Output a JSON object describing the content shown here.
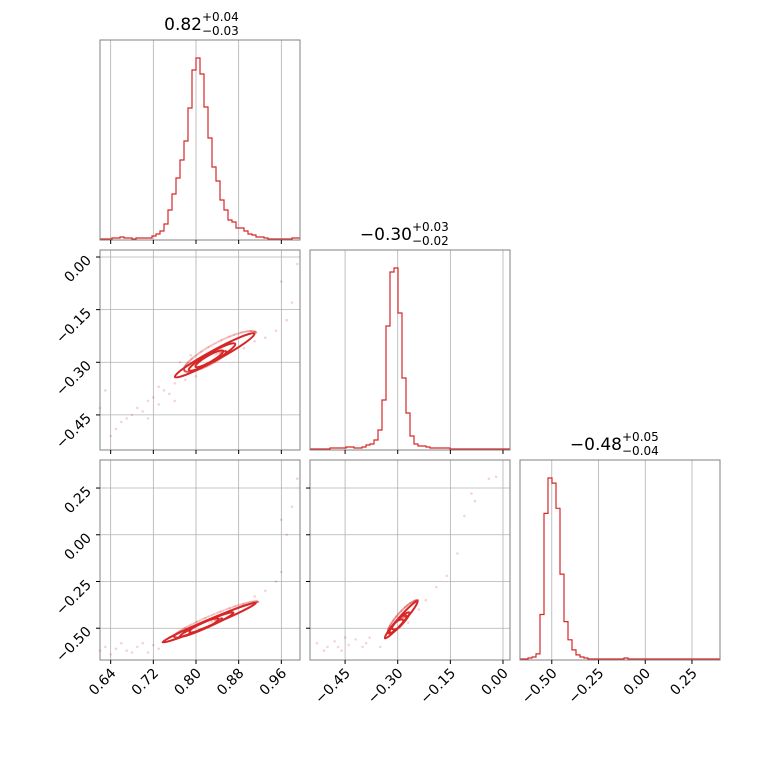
{
  "chart_data": {
    "type": "corner",
    "color": "#d62728",
    "parameters": [
      {
        "title": {
          "median": "0.82",
          "plus": "+0.04",
          "minus": "−0.03"
        },
        "range": [
          0.62,
          0.995
        ],
        "ticks": [
          {
            "value": 0.64,
            "label": "0.64"
          },
          {
            "value": 0.72,
            "label": "0.72"
          },
          {
            "value": 0.8,
            "label": "0.80"
          },
          {
            "value": 0.88,
            "label": "0.88"
          },
          {
            "value": 0.96,
            "label": "0.96"
          }
        ]
      },
      {
        "title": {
          "median": "−0.30",
          "plus": "+0.03",
          "minus": "−0.02"
        },
        "range": [
          -0.55,
          0.02
        ],
        "ticks": [
          {
            "value": -0.45,
            "label": "−0.45"
          },
          {
            "value": -0.3,
            "label": "−0.30"
          },
          {
            "value": -0.15,
            "label": "−0.15"
          },
          {
            "value": 0.0,
            "label": "0.00"
          }
        ]
      },
      {
        "title": {
          "median": "−0.48",
          "plus": "+0.05",
          "minus": "−0.04"
        },
        "range": [
          -0.67,
          0.4
        ],
        "ticks": [
          {
            "value": -0.5,
            "label": "−0.50"
          },
          {
            "value": -0.25,
            "label": "−0.25"
          },
          {
            "value": 0.0,
            "label": "0.00"
          },
          {
            "value": 0.25,
            "label": "0.25"
          }
        ]
      }
    ],
    "histograms": [
      {
        "param": 0,
        "bins": [
          0.62,
          0.6275,
          0.635,
          0.6425,
          0.65,
          0.6575,
          0.665,
          0.6725,
          0.68,
          0.6875,
          0.695,
          0.7025,
          0.71,
          0.7175,
          0.725,
          0.7325,
          0.74,
          0.7475,
          0.755,
          0.7625,
          0.77,
          0.7775,
          0.785,
          0.7925,
          0.8,
          0.8075,
          0.815,
          0.8225,
          0.83,
          0.8375,
          0.845,
          0.8525,
          0.86,
          0.8675,
          0.875,
          0.8825,
          0.89,
          0.8975,
          0.905,
          0.9125,
          0.92,
          0.9275,
          0.935,
          0.9425,
          0.95,
          0.9575,
          0.965,
          0.9725,
          0.98,
          0.9875,
          0.995
        ],
        "counts": [
          1,
          1,
          1,
          2,
          2,
          3,
          2,
          2,
          1,
          2,
          2,
          2,
          2,
          4,
          6,
          9,
          16,
          30,
          46,
          62,
          80,
          99,
          132,
          170,
          182,
          166,
          133,
          102,
          73,
          59,
          40,
          30,
          20,
          18,
          12,
          12,
          9,
          6,
          5,
          3,
          3,
          2,
          1,
          1,
          1,
          1,
          1,
          1,
          2,
          2
        ]
      },
      {
        "param": 1,
        "bins": [
          -0.55,
          -0.5386,
          -0.5272,
          -0.5158,
          -0.5044,
          -0.493,
          -0.4816,
          -0.4702,
          -0.4588,
          -0.4474,
          -0.436,
          -0.4246,
          -0.4132,
          -0.4018,
          -0.3904,
          -0.379,
          -0.3676,
          -0.3562,
          -0.3448,
          -0.3334,
          -0.322,
          -0.3106,
          -0.2992,
          -0.2878,
          -0.2764,
          -0.265,
          -0.2536,
          -0.2422,
          -0.2308,
          -0.2194,
          -0.208,
          -0.1966,
          -0.1852,
          -0.1738,
          -0.1624,
          -0.151,
          -0.1396,
          -0.1282,
          -0.1168,
          -0.1054,
          -0.094,
          -0.0826,
          -0.0712,
          -0.0598,
          -0.0484,
          -0.037,
          -0.0256,
          -0.0142,
          -0.0028,
          0.0086,
          0.02
        ],
        "counts": [
          1,
          1,
          1,
          1,
          1,
          2,
          2,
          2,
          2,
          3,
          3,
          2,
          2,
          3,
          5,
          6,
          10,
          20,
          50,
          124,
          178,
          182,
          137,
          72,
          37,
          14,
          6,
          4,
          4,
          3,
          2,
          2,
          2,
          2,
          2,
          1,
          1,
          1,
          1,
          1,
          1,
          1,
          1,
          1,
          1,
          1,
          1,
          1,
          1,
          1
        ]
      },
      {
        "param": 2,
        "bins": [
          -0.67,
          -0.6486,
          -0.6272,
          -0.6058,
          -0.5844,
          -0.563,
          -0.5416,
          -0.5202,
          -0.4988,
          -0.4774,
          -0.456,
          -0.4346,
          -0.4132,
          -0.3918,
          -0.3704,
          -0.349,
          -0.3276,
          -0.3062,
          -0.2848,
          -0.2634,
          -0.242,
          -0.2206,
          -0.1992,
          -0.1778,
          -0.1564,
          -0.135,
          -0.1136,
          -0.0922,
          -0.0708,
          -0.0494,
          -0.028,
          -0.0066,
          0.0148,
          0.0362,
          0.0576,
          0.079,
          0.1004,
          0.1218,
          0.1432,
          0.1646,
          0.186,
          0.2074,
          0.2288,
          0.2502,
          0.2716,
          0.293,
          0.3144,
          0.3358,
          0.3572,
          0.3786,
          0.4
        ],
        "counts": [
          1,
          1,
          2,
          3,
          6,
          45,
          145,
          180,
          175,
          150,
          85,
          38,
          20,
          10,
          5,
          3,
          2,
          1,
          1,
          1,
          1,
          1,
          1,
          1,
          1,
          1,
          2,
          1,
          1,
          1,
          1,
          1,
          1,
          1,
          1,
          1,
          1,
          1,
          1,
          1,
          1,
          1,
          1,
          1,
          1,
          1,
          1,
          1,
          1,
          1
        ]
      }
    ],
    "scatter": [
      {
        "x_param": 0,
        "y_param": 1,
        "points": [
          [
            0.65,
            -0.49
          ],
          [
            0.66,
            -0.47
          ],
          [
            0.68,
            -0.45
          ],
          [
            0.7,
            -0.44
          ],
          [
            0.71,
            -0.41
          ],
          [
            0.72,
            -0.4
          ],
          [
            0.73,
            -0.42
          ],
          [
            0.74,
            -0.38
          ],
          [
            0.75,
            -0.39
          ],
          [
            0.76,
            -0.36
          ],
          [
            0.67,
            -0.46
          ],
          [
            0.69,
            -0.43
          ],
          [
            0.73,
            -0.37
          ],
          [
            0.78,
            -0.35
          ],
          [
            0.96,
            -0.07
          ],
          [
            0.99,
            -0.02
          ],
          [
            0.97,
            -0.18
          ],
          [
            0.98,
            -0.13
          ],
          [
            0.64,
            -0.51
          ],
          [
            0.63,
            -0.38
          ],
          [
            0.62,
            -0.43
          ],
          [
            0.95,
            -0.21
          ],
          [
            0.93,
            -0.23
          ],
          [
            0.91,
            -0.24
          ],
          [
            0.89,
            -0.26
          ],
          [
            0.76,
            -0.41
          ],
          [
            0.71,
            -0.46
          ],
          [
            0.77,
            -0.3
          ],
          [
            0.79,
            -0.28
          ],
          [
            0.8,
            -0.34
          ]
        ]
      },
      {
        "x_param": 0,
        "y_param": 2,
        "points": [
          [
            0.63,
            -0.6
          ],
          [
            0.65,
            -0.61
          ],
          [
            0.67,
            -0.62
          ],
          [
            0.69,
            -0.6
          ],
          [
            0.7,
            -0.58
          ],
          [
            0.72,
            -0.59
          ],
          [
            0.74,
            -0.57
          ],
          [
            0.66,
            -0.58
          ],
          [
            0.68,
            -0.63
          ],
          [
            0.62,
            -0.62
          ],
          [
            0.64,
            -0.64
          ],
          [
            0.93,
            -0.3
          ],
          [
            0.95,
            -0.25
          ],
          [
            0.96,
            -0.2
          ],
          [
            0.97,
            0.0
          ],
          [
            0.98,
            0.15
          ],
          [
            0.99,
            0.3
          ],
          [
            0.96,
            0.08
          ],
          [
            0.75,
            -0.55
          ],
          [
            0.71,
            -0.63
          ],
          [
            0.78,
            -0.52
          ],
          [
            0.89,
            -0.38
          ],
          [
            0.91,
            -0.33
          ],
          [
            0.73,
            -0.61
          ]
        ]
      },
      {
        "x_param": 1,
        "y_param": 2,
        "points": [
          [
            -0.53,
            -0.58
          ],
          [
            -0.5,
            -0.6
          ],
          [
            -0.48,
            -0.57
          ],
          [
            -0.46,
            -0.62
          ],
          [
            -0.44,
            -0.59
          ],
          [
            -0.42,
            -0.56
          ],
          [
            -0.4,
            -0.6
          ],
          [
            -0.38,
            -0.55
          ],
          [
            -0.45,
            -0.55
          ],
          [
            -0.51,
            -0.62
          ],
          [
            -0.47,
            -0.6
          ],
          [
            -0.39,
            -0.58
          ],
          [
            -0.24,
            -0.4
          ],
          [
            -0.22,
            -0.35
          ],
          [
            -0.19,
            -0.28
          ],
          [
            -0.16,
            -0.22
          ],
          [
            -0.13,
            -0.1
          ],
          [
            -0.11,
            0.1
          ],
          [
            -0.09,
            0.22
          ],
          [
            -0.04,
            0.3
          ],
          [
            -0.02,
            0.31
          ],
          [
            -0.08,
            0.18
          ],
          [
            -0.27,
            -0.47
          ],
          [
            -0.35,
            -0.6
          ]
        ]
      }
    ],
    "contours": [
      {
        "x_param": 0,
        "y_param": 1,
        "levels": [
          {
            "center": [
              0.825,
              -0.29
            ],
            "ax": 0.03,
            "ay": 0.02,
            "angle": 0.52
          },
          {
            "center": [
              0.83,
              -0.285
            ],
            "ax": 0.05,
            "ay": 0.028,
            "angle": 0.52
          },
          {
            "center": [
              0.835,
              -0.28
            ],
            "ax": 0.085,
            "ay": 0.032,
            "angle": 0.5
          }
        ]
      },
      {
        "x_param": 0,
        "y_param": 2,
        "levels": [
          {
            "center": [
              0.815,
              -0.485
            ],
            "ax": 0.03,
            "ay": 0.022,
            "angle": 0.42
          },
          {
            "center": [
              0.82,
              -0.48
            ],
            "ax": 0.055,
            "ay": 0.03,
            "angle": 0.42
          },
          {
            "center": [
              0.825,
              -0.47
            ],
            "ax": 0.095,
            "ay": 0.035,
            "angle": 0.4
          }
        ]
      },
      {
        "x_param": 1,
        "y_param": 2,
        "levels": [
          {
            "center": [
              -0.3,
              -0.48
            ],
            "ax": 0.02,
            "ay": 0.03,
            "angle": 0.72
          },
          {
            "center": [
              -0.295,
              -0.47
            ],
            "ax": 0.04,
            "ay": 0.03,
            "angle": 0.8
          },
          {
            "center": [
              -0.29,
              -0.455
            ],
            "ax": 0.07,
            "ay": 0.035,
            "angle": 0.85
          }
        ]
      }
    ],
    "grid": true,
    "legend": "none"
  }
}
